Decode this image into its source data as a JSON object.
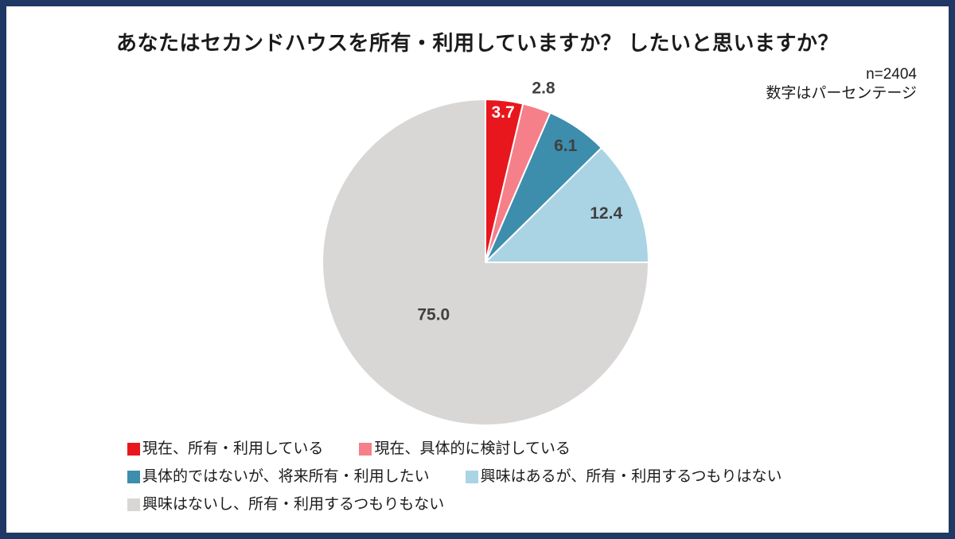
{
  "frame": {
    "border_color": "#1f3864",
    "background": "#ffffff"
  },
  "header": {
    "title": "あなたはセカンドハウスを所有・利用していますか？ したいと思いますか？",
    "sample_size": "n=2404",
    "note": "数字はパーセンテージ"
  },
  "chart_data": {
    "type": "pie",
    "title": "あなたはセカンドハウスを所有・利用していますか？ したいと思いますか？",
    "sample_size": "n=2404",
    "note": "数字はパーセンテージ",
    "unit": "percent",
    "start_angle_deg": 0,
    "direction": "clockwise",
    "legend_position": "bottom-left",
    "legend_rows": [
      [
        0,
        1
      ],
      [
        2,
        3
      ],
      [
        4
      ]
    ],
    "slices": [
      {
        "label": "現在、所有・利用している",
        "value": 3.7,
        "value_label": "3.7",
        "color": "#e8171d",
        "label_color": "#ffffff",
        "label_r": 0.93
      },
      {
        "label": "現在、具体的に検討している",
        "value": 2.8,
        "value_label": "2.8",
        "color": "#f5808a",
        "label_color": "#404040",
        "label_r": 1.13
      },
      {
        "label": "具体的ではないが、将来所有・利用したい",
        "value": 6.1,
        "value_label": "6.1",
        "color": "#3d8dad",
        "label_color": "#404040",
        "label_r": 0.87
      },
      {
        "label": "興味はあるが、所有・利用するつもりはない",
        "value": 12.4,
        "value_label": "12.4",
        "color": "#aad4e4",
        "label_color": "#404040",
        "label_r": 0.8
      },
      {
        "label": "興味はないし、所有・利用するつもりもない",
        "value": 75.0,
        "value_label": "75.0",
        "color": "#d9d6d6",
        "label_color": "#404040",
        "label_r": 0.45
      }
    ]
  }
}
